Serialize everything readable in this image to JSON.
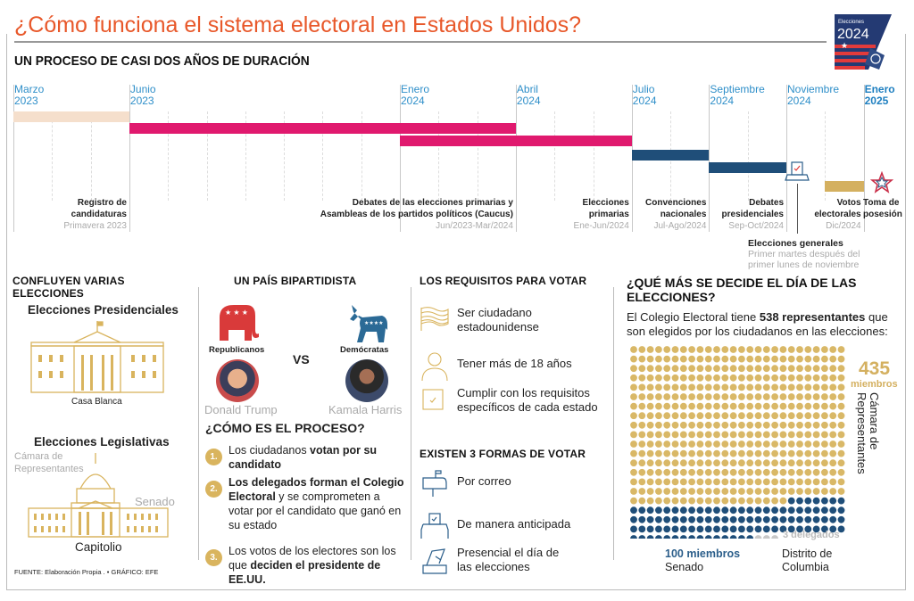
{
  "header": {
    "title": "¿Cómo funciona el sistema electoral en Estados Unidos?",
    "subtitle": "UN PROCESO DE CASI DOS AÑOS DE DURACIÓN",
    "badge": {
      "line1": "Elecciones",
      "line2": "2024"
    }
  },
  "timeline": {
    "months": [
      {
        "m": "Marzo",
        "y": "2023",
        "at": "2023-03"
      },
      {
        "m": "Junio",
        "y": "2023",
        "at": "2023-06"
      },
      {
        "m": "Enero",
        "y": "2024",
        "at": "2024-01"
      },
      {
        "m": "Abril",
        "y": "2024",
        "at": "2024-04"
      },
      {
        "m": "Julio",
        "y": "2024",
        "at": "2024-07"
      },
      {
        "m": "Septiembre",
        "y": "2024",
        "at": "2024-09"
      },
      {
        "m": "Noviembre",
        "y": "2024",
        "at": "2024-11"
      },
      {
        "m": "Enero",
        "y": "2025",
        "at": "2025-01",
        "bold": true
      }
    ],
    "events": [
      {
        "l1": "Registro de",
        "l2": "candidaturas",
        "date": "Primavera 2023",
        "start": "2023-03",
        "end": "2023-06",
        "color": "#f5dfcc"
      },
      {
        "l1": "Debates de las elecciones primarias y",
        "l2": "Asambleas de los partidos políticos (Caucus)",
        "date": "Jun/2023-Mar/2024",
        "start": "2023-06",
        "end": "2024-04",
        "color": "#e0196e"
      },
      {
        "l1": "Elecciones",
        "l2": "primarias",
        "date": "Ene-Jun/2024",
        "start": "2024-01",
        "end": "2024-07",
        "color": "#e0196e"
      },
      {
        "l1": "Convenciones",
        "l2": "nacionales",
        "date": "Jul-Ago/2024",
        "start": "2024-07",
        "end": "2024-09",
        "color": "#1f4e79"
      },
      {
        "l1": "Debates",
        "l2": "presidenciales",
        "date": "Sep-Oct/2024",
        "start": "2024-09",
        "end": "2024-11",
        "color": "#1f4e79"
      },
      {
        "l1": "Votos",
        "l2": "electorales",
        "date": "Dic/2024",
        "start": "2024-12",
        "end": "2025-01",
        "color": "#d4b060"
      }
    ],
    "general": {
      "title": "Elecciones generales",
      "l1": "Primer martes después del",
      "l2": "primer lunes de noviembre"
    },
    "inauguration": {
      "l1": "Toma de",
      "l2": "posesión"
    }
  },
  "elections": {
    "heading": "CONFLUYEN VARIAS ELECCIONES",
    "presidential": "Elecciones Presidenciales",
    "white_house": "Casa Blanca",
    "legislative": "Elecciones Legislativas",
    "house": "Cámara de Representantes",
    "house_l1": "Cámara de",
    "house_l2": "Representantes",
    "senate": "Senado",
    "capitol": "Capitolio"
  },
  "source": "FUENTE: Elaboración Propia . • GRÁFICO: EFE",
  "parties": {
    "heading": "UN PAÍS BIPARTIDISTA",
    "rep": "Republicanos",
    "dem": "Demócratas",
    "vs": "VS",
    "rep_candidate": "Donald Trump",
    "dem_candidate": "Kamala Harris",
    "rep_color": "#d93a3a",
    "dem_color": "#2b6a96"
  },
  "process": {
    "heading": "¿CÓMO ES EL PROCESO?",
    "steps": [
      {
        "n": "1.",
        "a": "Los ciudadanos ",
        "b": "votan por su candidato",
        "c": ""
      },
      {
        "n": "2.",
        "a": "",
        "b": "Los delegados forman el Colegio Electoral",
        "c": " y se comprometen a votar por el candidato que ganó en su estado"
      },
      {
        "n": "3.",
        "a": "Los votos de los electores son los que ",
        "b": "deciden el presidente de EE.UU.",
        "c": ""
      }
    ]
  },
  "requirements": {
    "heading": "LOS REQUISITOS PARA VOTAR",
    "items": [
      {
        "icon": "flag-icon",
        "l1": "Ser ciudadano",
        "l2": "estadounidense"
      },
      {
        "icon": "person-icon",
        "l1": "Tener más de 18 años",
        "l2": ""
      },
      {
        "icon": "checkbox-icon",
        "l1": "Cumplir con los requisitos",
        "l2": "específicos de cada estado"
      }
    ]
  },
  "ways": {
    "heading": "EXISTEN 3 FORMAS DE VOTAR",
    "items": [
      {
        "icon": "mailbox-icon",
        "l1": "Por correo",
        "l2": ""
      },
      {
        "icon": "ballot-box-icon",
        "l1": "De manera anticipada",
        "l2": ""
      },
      {
        "icon": "hand-ballot-icon",
        "l1": "Presencial el día de",
        "l2": "las elecciones"
      }
    ]
  },
  "college": {
    "heading_l1": "¿QUÉ MÁS SE DECIDE EL DÍA DE LAS",
    "heading_l2": "ELECCIONES?",
    "intro_a": "El Colegio Electoral tiene ",
    "intro_b": "538 representantes",
    "intro_c": " que son elegidos por los ciudadanos en las elecciones:",
    "house_count": "435",
    "house_unit": "miembros",
    "house_label": "Cámara de Representantes",
    "senate_count": "100 miembros",
    "senate_label": "Senado",
    "dc_count": "3 delegados",
    "dc_l1": "Distrito de",
    "dc_l2": "Columbia",
    "groups": [
      {
        "n": 435,
        "color": "#d9b867"
      },
      {
        "n": 100,
        "color": "#1f4e79"
      },
      {
        "n": 3,
        "color": "#c8c8c8"
      }
    ]
  }
}
